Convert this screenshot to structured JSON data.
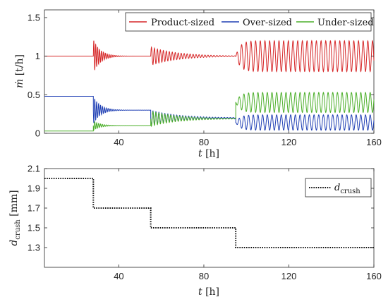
{
  "chart_data": [
    {
      "type": "line",
      "xlabel": "t [h]",
      "ylabel": "ṁ [t/h]",
      "xlim": [
        5,
        160
      ],
      "ylim": [
        0,
        1.6
      ],
      "xticks": [
        40,
        80,
        120,
        160
      ],
      "yticks": [
        0,
        0.5,
        1,
        1.5
      ],
      "ytick_labels": [
        "0",
        "0.5",
        "1",
        "1.5"
      ],
      "legend": "top-right",
      "grid": false,
      "series": [
        {
          "name": "Product-sized",
          "color": "#d62728",
          "segments": [
            {
              "t0": 5,
              "t1": 28,
              "base": 1.0,
              "amp": 0
            },
            {
              "t0": 28,
              "t1": 55,
              "base": 1.0,
              "amp": 0.22,
              "decay": 0.3,
              "period": 0.9
            },
            {
              "t0": 55,
              "t1": 95,
              "base": 1.0,
              "amp": 0.12,
              "decay": 0.08,
              "period": 1.4
            },
            {
              "t0": 95,
              "t1": 160,
              "base": 1.0,
              "amp": 0.2,
              "grow": true,
              "period": 2.2
            }
          ]
        },
        {
          "name": "Over-sized",
          "color": "#1f3fb4",
          "segments": [
            {
              "t0": 5,
              "t1": 28,
              "base": 0.48,
              "amp": 0
            },
            {
              "t0": 28,
              "t1": 55,
              "base": 0.3,
              "amp": 0.18,
              "decay": 0.3,
              "period": 0.9
            },
            {
              "t0": 55,
              "t1": 95,
              "base": 0.2,
              "amp": 0.1,
              "decay": 0.08,
              "period": 1.4
            },
            {
              "t0": 95,
              "t1": 160,
              "base": 0.14,
              "amp": 0.1,
              "grow": true,
              "period": 2.2
            }
          ]
        },
        {
          "name": "Under-sized",
          "color": "#4caf2a",
          "segments": [
            {
              "t0": 5,
              "t1": 28,
              "base": 0.03,
              "amp": 0
            },
            {
              "t0": 28,
              "t1": 55,
              "base": 0.1,
              "amp": 0.06,
              "decay": 0.3,
              "period": 0.9
            },
            {
              "t0": 55,
              "t1": 95,
              "base": 0.19,
              "amp": 0.1,
              "decay": 0.08,
              "period": 1.4
            },
            {
              "t0": 95,
              "t1": 160,
              "base": 0.4,
              "amp": 0.13,
              "grow": true,
              "period": 2.2
            }
          ]
        }
      ]
    },
    {
      "type": "line",
      "xlabel": "t [h]",
      "ylabel": "d_crush [mm]",
      "xlim": [
        5,
        160
      ],
      "ylim": [
        1.1,
        2.1
      ],
      "xticks": [
        40,
        80,
        120,
        160
      ],
      "yticks": [
        1.3,
        1.5,
        1.7,
        1.9,
        2.1
      ],
      "ytick_labels": [
        "1.3",
        "1.5",
        "1.7",
        "1.9",
        "2.1"
      ],
      "legend": "top-right",
      "grid": false,
      "series": [
        {
          "name": "d_crush",
          "color": "#111111",
          "style": "dotted",
          "x": [
            5,
            28,
            28,
            55,
            55,
            95,
            95,
            160
          ],
          "y": [
            2.0,
            2.0,
            1.7,
            1.7,
            1.5,
            1.5,
            1.3,
            1.3
          ]
        }
      ]
    }
  ]
}
